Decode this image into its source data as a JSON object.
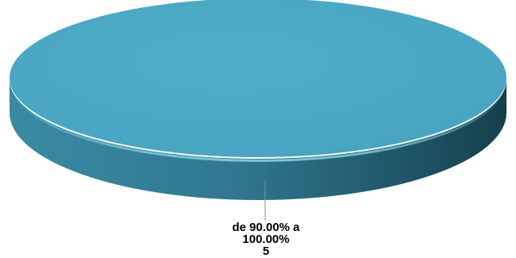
{
  "chart_data": {
    "type": "pie",
    "title": "",
    "slices": [
      {
        "label_lines": [
          "de 90.00% a",
          "100.00%"
        ],
        "value": 5,
        "value_text": "5",
        "color": "#4aa8c4"
      }
    ],
    "legend": "none",
    "style": "3d"
  }
}
